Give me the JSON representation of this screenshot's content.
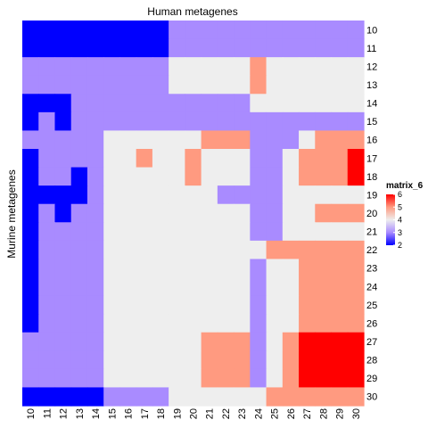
{
  "chart_data": {
    "type": "heatmap",
    "title": "Human metagenes",
    "ylabel": "Murine metagenes",
    "x_categories": [
      "10",
      "11",
      "12",
      "13",
      "14",
      "15",
      "16",
      "17",
      "18",
      "19",
      "20",
      "21",
      "22",
      "23",
      "24",
      "25",
      "26",
      "27",
      "28",
      "29",
      "30"
    ],
    "y_categories": [
      "10",
      "11",
      "12",
      "13",
      "14",
      "15",
      "16",
      "17",
      "18",
      "19",
      "20",
      "21",
      "22",
      "23",
      "24",
      "25",
      "26",
      "27",
      "28",
      "29",
      "30"
    ],
    "color_scale": {
      "min": 2,
      "max": 6,
      "stops": [
        {
          "value": 2,
          "color": "#0000FF"
        },
        {
          "value": 3,
          "color": "#A98BFF"
        },
        {
          "value": 4,
          "color": "#EEEEEE"
        },
        {
          "value": 5,
          "color": "#FF9A80"
        },
        {
          "value": 6,
          "color": "#FF0000"
        }
      ]
    },
    "legend": {
      "title": "matrix_6",
      "ticks": [
        "6",
        "5",
        "4",
        "3",
        "2"
      ],
      "placement": "right"
    },
    "matrix": [
      [
        2,
        2,
        2,
        2,
        2,
        2,
        2,
        2,
        2,
        3,
        3,
        3,
        3,
        3,
        3,
        3,
        3,
        3,
        3,
        3,
        3
      ],
      [
        2,
        2,
        2,
        2,
        2,
        2,
        2,
        2,
        2,
        3,
        3,
        3,
        3,
        3,
        3,
        3,
        3,
        3,
        3,
        3,
        3
      ],
      [
        3,
        3,
        3,
        3,
        3,
        3,
        3,
        3,
        3,
        4,
        4,
        4,
        4,
        4,
        5,
        4,
        4,
        4,
        4,
        4,
        4
      ],
      [
        3,
        3,
        3,
        3,
        3,
        3,
        3,
        3,
        3,
        4,
        4,
        4,
        4,
        4,
        5,
        4,
        4,
        4,
        4,
        4,
        4
      ],
      [
        2,
        2,
        2,
        3,
        3,
        3,
        3,
        3,
        3,
        3,
        3,
        3,
        3,
        3,
        4,
        4,
        4,
        4,
        4,
        4,
        4
      ],
      [
        2,
        3,
        2,
        3,
        3,
        3,
        3,
        3,
        3,
        3,
        3,
        3,
        3,
        3,
        3,
        3,
        3,
        3,
        3,
        3,
        3
      ],
      [
        3,
        3,
        3,
        3,
        3,
        4,
        4,
        4,
        4,
        4,
        4,
        5,
        5,
        5,
        3,
        3,
        3,
        4,
        5,
        5,
        5
      ],
      [
        2,
        3,
        3,
        3,
        3,
        4,
        4,
        5,
        4,
        4,
        5,
        4,
        4,
        4,
        3,
        3,
        4,
        5,
        5,
        5,
        6
      ],
      [
        2,
        3,
        3,
        2,
        3,
        4,
        4,
        4,
        4,
        4,
        5,
        4,
        4,
        4,
        3,
        3,
        4,
        5,
        5,
        5,
        6
      ],
      [
        2,
        2,
        2,
        2,
        3,
        4,
        4,
        4,
        4,
        4,
        4,
        4,
        3,
        3,
        3,
        3,
        4,
        4,
        4,
        4,
        4
      ],
      [
        2,
        3,
        2,
        3,
        3,
        4,
        4,
        4,
        4,
        4,
        4,
        4,
        4,
        4,
        3,
        3,
        4,
        4,
        5,
        5,
        5
      ],
      [
        2,
        3,
        3,
        3,
        3,
        4,
        4,
        4,
        4,
        4,
        4,
        4,
        4,
        4,
        3,
        3,
        4,
        4,
        4,
        4,
        4
      ],
      [
        2,
        3,
        3,
        3,
        3,
        4,
        4,
        4,
        4,
        4,
        4,
        4,
        4,
        4,
        4,
        5,
        5,
        5,
        5,
        5,
        5
      ],
      [
        2,
        3,
        3,
        3,
        3,
        4,
        4,
        4,
        4,
        4,
        4,
        4,
        4,
        4,
        3,
        4,
        4,
        5,
        5,
        5,
        5
      ],
      [
        2,
        3,
        3,
        3,
        3,
        4,
        4,
        4,
        4,
        4,
        4,
        4,
        4,
        4,
        3,
        4,
        4,
        5,
        5,
        5,
        5
      ],
      [
        2,
        3,
        3,
        3,
        3,
        4,
        4,
        4,
        4,
        4,
        4,
        4,
        4,
        4,
        3,
        4,
        4,
        5,
        5,
        5,
        5
      ],
      [
        2,
        3,
        3,
        3,
        3,
        4,
        4,
        4,
        4,
        4,
        4,
        4,
        4,
        4,
        3,
        4,
        4,
        5,
        5,
        5,
        5
      ],
      [
        3,
        3,
        3,
        3,
        3,
        4,
        4,
        4,
        4,
        4,
        4,
        5,
        5,
        5,
        3,
        4,
        5,
        6,
        6,
        6,
        6
      ],
      [
        3,
        3,
        3,
        3,
        3,
        4,
        4,
        4,
        4,
        4,
        4,
        5,
        5,
        5,
        3,
        4,
        5,
        6,
        6,
        6,
        6
      ],
      [
        3,
        3,
        3,
        3,
        3,
        4,
        4,
        4,
        4,
        4,
        4,
        5,
        5,
        5,
        3,
        4,
        5,
        6,
        6,
        6,
        6
      ],
      [
        2,
        2,
        2,
        2,
        2,
        3,
        3,
        3,
        3,
        4,
        4,
        4,
        4,
        4,
        4,
        5,
        5,
        5,
        5,
        5,
        5
      ]
    ]
  }
}
